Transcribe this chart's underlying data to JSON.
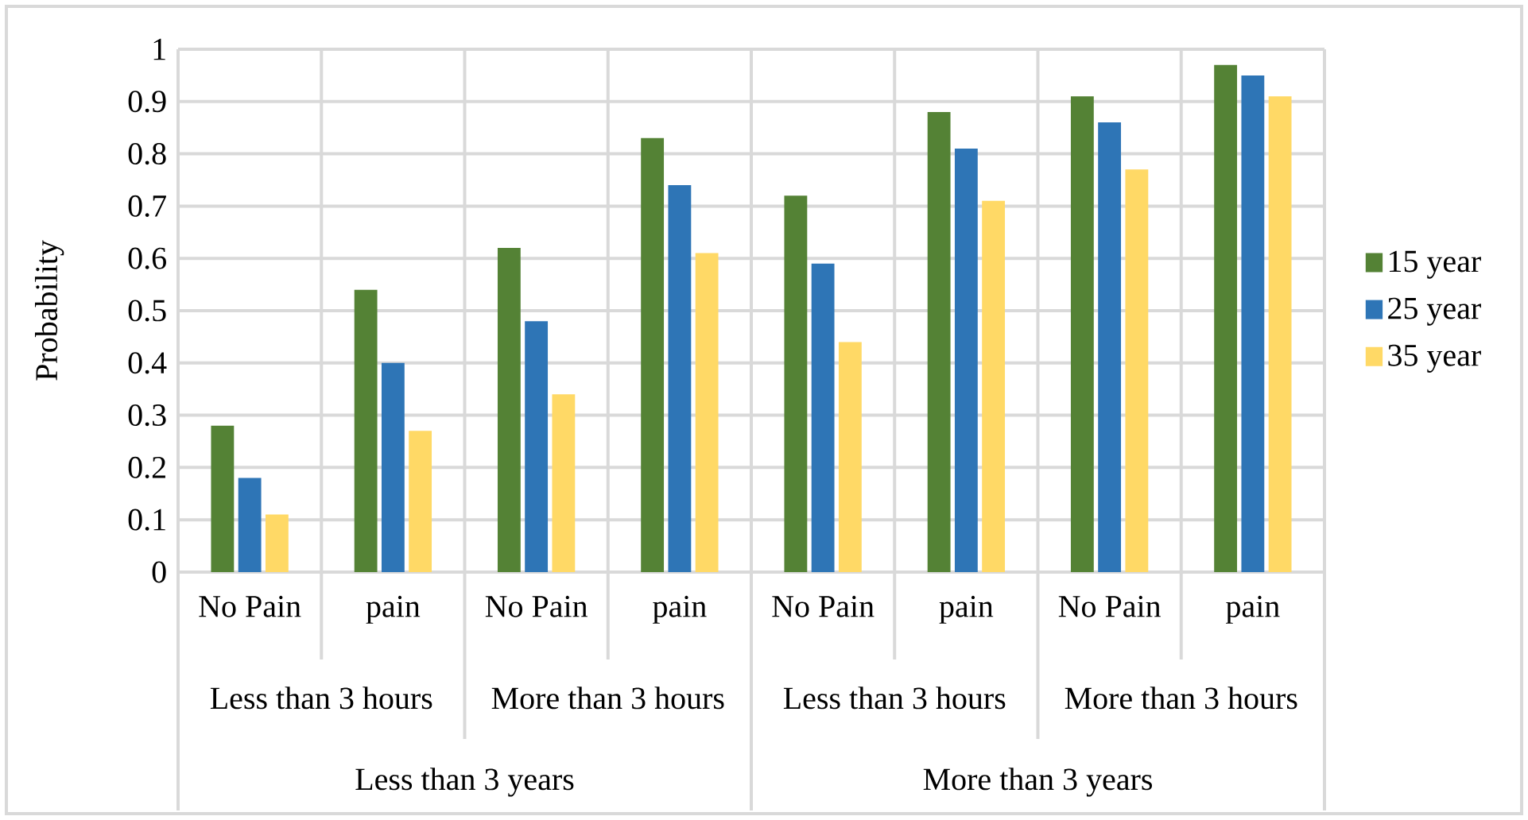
{
  "chart_data": {
    "type": "bar",
    "ylabel": "Probability",
    "categories": [
      "No Pain",
      "pain",
      "No Pain",
      "pain",
      "No Pain",
      "pain",
      "No Pain",
      "pain"
    ],
    "annotations": [
      "Less than 3 hours",
      "More than 3 hours",
      "Less than 3 hours",
      "More than 3 hours",
      "Less than 3 years",
      "More than 3 years"
    ],
    "series": [
      {
        "name": "15 year",
        "color": "#548235",
        "values": [
          0.28,
          0.54,
          0.62,
          0.83,
          0.72,
          0.88,
          0.91,
          0.97
        ]
      },
      {
        "name": "25 year",
        "color": "#2e75b6",
        "values": [
          0.18,
          0.4,
          0.48,
          0.74,
          0.59,
          0.81,
          0.86,
          0.95
        ]
      },
      {
        "name": "35 year",
        "color": "#ffd966",
        "values": [
          0.11,
          0.27,
          0.34,
          0.61,
          0.44,
          0.71,
          0.77,
          0.91
        ]
      }
    ],
    "ylim": [
      0,
      1
    ],
    "yticks": [
      0,
      0.1,
      0.2,
      0.3,
      0.4,
      0.5,
      0.6,
      0.7,
      0.8,
      0.9,
      1
    ],
    "grid": true,
    "legend": "right"
  }
}
